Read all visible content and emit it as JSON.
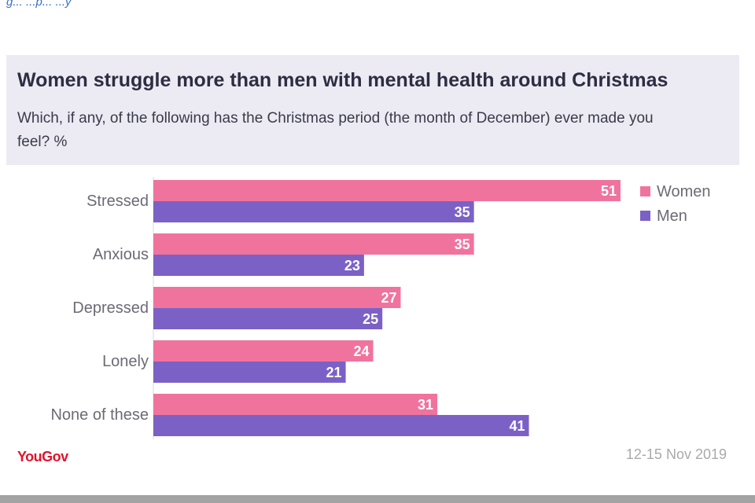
{
  "header": {
    "caption": "g...  ...p... ...y",
    "title": "Women struggle more than men with mental health around Christmas",
    "subtitle": "Which, if any, of the following has the Christmas period (the month of December) ever made you feel? %"
  },
  "footer": {
    "logo": "YouGov",
    "date": "12-15 Nov 2019"
  },
  "colors": {
    "women": "#f0739e",
    "men": "#7b61c5",
    "logo": "#e0142c"
  },
  "chart_data": {
    "type": "bar",
    "orientation": "horizontal",
    "title": "Women struggle more than men with mental health around Christmas",
    "subtitle": "Which, if any, of the following has the Christmas period (the month of December) ever made you feel? %",
    "categories": [
      "Stressed",
      "Anxious",
      "Depressed",
      "Lonely",
      "None of these"
    ],
    "series": [
      {
        "name": "Women",
        "values": [
          51,
          35,
          27,
          24,
          31
        ],
        "color": "#f0739e"
      },
      {
        "name": "Men",
        "values": [
          35,
          23,
          25,
          21,
          41
        ],
        "color": "#7b61c5"
      }
    ],
    "xlim": [
      0,
      51
    ],
    "legend_position": "top-right",
    "data_labels": "inside-end",
    "grid": false
  }
}
